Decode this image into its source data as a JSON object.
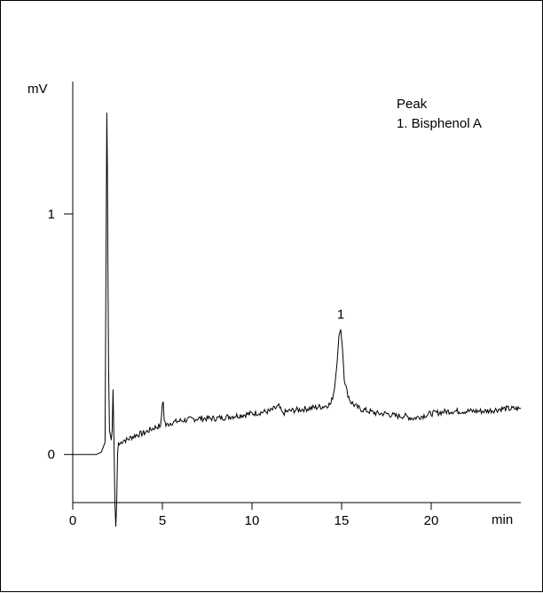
{
  "chart_data": {
    "type": "line",
    "title": "",
    "xlabel": "min",
    "ylabel": "mV",
    "xlim": [
      0,
      25
    ],
    "ylim": [
      -0.2,
      1.55
    ],
    "x_ticks": [
      "0",
      "5",
      "10",
      "15",
      "20"
    ],
    "y_ticks": [
      "0",
      "1"
    ],
    "legend": {
      "title": "Peak",
      "entries": [
        "1. Bisphenol A"
      ],
      "placement": "top-right"
    },
    "peak_labels": [
      {
        "label": "1",
        "x": 14.95,
        "y": 0.52
      }
    ],
    "series": [
      {
        "x": [
          0.0,
          0.5,
          1.0,
          1.3,
          1.6,
          1.7,
          1.8,
          1.85,
          1.9,
          1.93,
          1.96,
          2.0,
          2.05,
          2.1,
          2.15,
          2.2,
          2.25,
          2.3,
          2.35,
          2.4,
          2.45,
          2.5,
          2.55,
          2.6,
          2.7,
          2.8,
          3.0,
          3.5,
          4.0,
          4.5,
          4.9,
          5.0,
          5.05,
          5.1,
          5.2,
          5.4,
          6.0,
          7.0,
          8.0,
          9.0,
          10.0,
          11.0,
          11.5,
          11.7,
          12.0,
          13.0,
          14.0,
          14.4,
          14.6,
          14.75,
          14.85,
          14.95,
          15.05,
          15.15,
          15.3,
          15.5,
          15.8,
          16.0,
          16.5,
          17.0,
          17.5,
          18.0,
          18.5,
          19.0,
          19.5,
          20.0,
          21.0,
          22.0,
          23.0,
          24.0,
          25.0
        ],
        "y": [
          0.0,
          0.0,
          0.0,
          0.0,
          0.01,
          0.03,
          0.05,
          0.75,
          1.42,
          1.2,
          0.8,
          0.35,
          0.1,
          0.08,
          0.06,
          0.1,
          0.27,
          0.05,
          -0.2,
          -0.3,
          -0.2,
          0.0,
          0.05,
          0.04,
          0.05,
          0.06,
          0.06,
          0.08,
          0.09,
          0.11,
          0.12,
          0.2,
          0.22,
          0.15,
          0.12,
          0.13,
          0.14,
          0.15,
          0.15,
          0.16,
          0.17,
          0.18,
          0.2,
          0.17,
          0.18,
          0.19,
          0.2,
          0.21,
          0.27,
          0.38,
          0.5,
          0.52,
          0.44,
          0.32,
          0.26,
          0.22,
          0.2,
          0.19,
          0.18,
          0.17,
          0.17,
          0.16,
          0.16,
          0.15,
          0.16,
          0.17,
          0.18,
          0.18,
          0.18,
          0.19,
          0.19
        ]
      }
    ]
  }
}
